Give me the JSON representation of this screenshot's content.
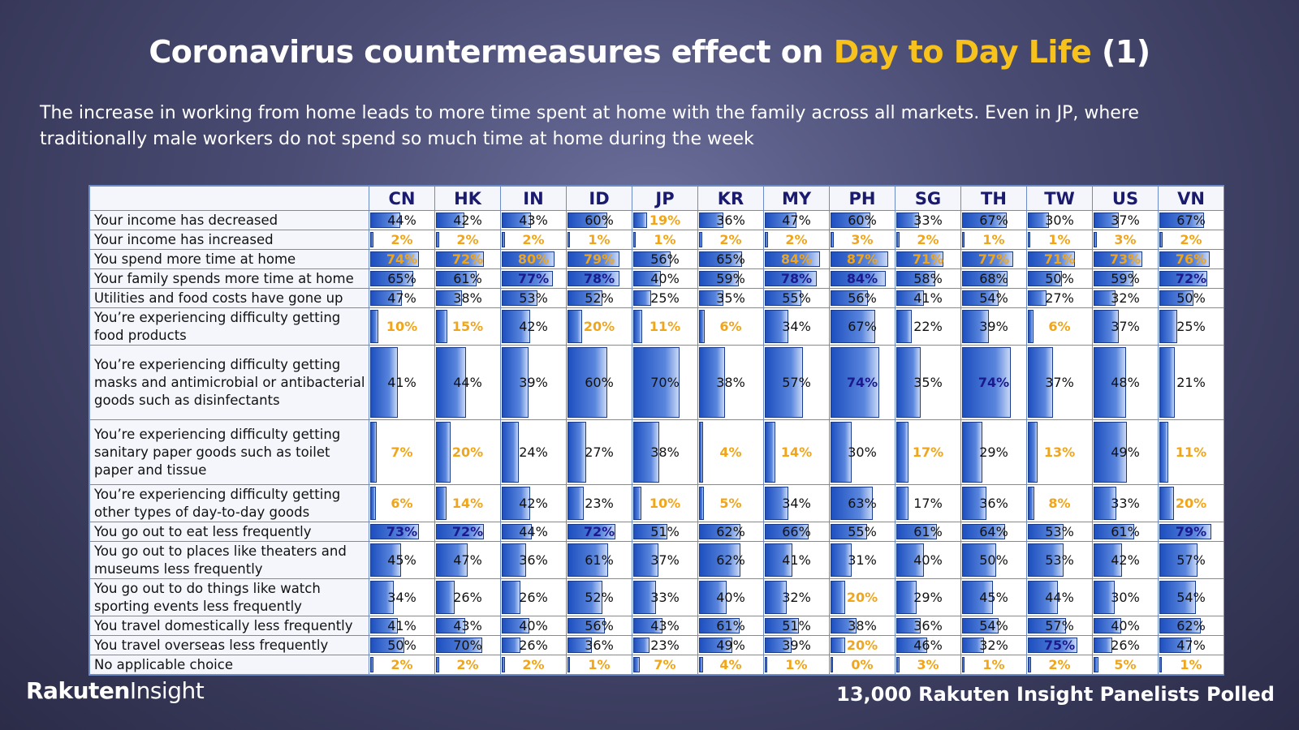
{
  "header": {
    "title_main": "Coronavirus countermeasures effect on ",
    "title_highlight": "Day to Day Life",
    "title_suffix": " (1)",
    "subtitle": "The increase in working from home leads to more time spent at home with the family across all markets. Even in JP, where traditionally male workers do not spend so much time at home during the week"
  },
  "footer": {
    "logo_brand": "Rakuten",
    "logo_sub": "Insight",
    "panel_note": "13,000  Rakuten Insight Panelists Polled"
  },
  "colors": {
    "highlight": "#f7c21c",
    "low_value": "#f0a51b",
    "high_value": "#1a1a8e",
    "bar": "#3a6fd1"
  },
  "chart_data": {
    "type": "table",
    "columns": [
      "CN",
      "HK",
      "IN",
      "ID",
      "JP",
      "KR",
      "MY",
      "PH",
      "SG",
      "TH",
      "TW",
      "US",
      "VN"
    ],
    "rows": [
      {
        "label": "Your income has decreased",
        "values": [
          44,
          42,
          43,
          60,
          19,
          36,
          47,
          60,
          33,
          67,
          30,
          37,
          67
        ]
      },
      {
        "label": "Your income has increased",
        "values": [
          2,
          2,
          2,
          1,
          1,
          2,
          2,
          3,
          2,
          1,
          1,
          3,
          2
        ]
      },
      {
        "label": "You spend more time at home",
        "values": [
          74,
          72,
          80,
          79,
          56,
          65,
          84,
          87,
          71,
          77,
          71,
          73,
          76
        ]
      },
      {
        "label": "Your family spends more time at home",
        "values": [
          65,
          61,
          77,
          78,
          40,
          59,
          78,
          84,
          58,
          68,
          50,
          59,
          72
        ]
      },
      {
        "label": "Utilities and food costs have gone up",
        "values": [
          47,
          38,
          53,
          52,
          25,
          35,
          55,
          56,
          41,
          54,
          27,
          32,
          50
        ]
      },
      {
        "label": "You’re experiencing difficulty getting food products",
        "values": [
          10,
          15,
          42,
          20,
          11,
          6,
          34,
          67,
          22,
          39,
          6,
          37,
          25
        ]
      },
      {
        "label": "You’re experiencing difficulty getting masks and antimicrobial or antibacterial goods such as disinfectants",
        "values": [
          41,
          44,
          39,
          60,
          70,
          38,
          57,
          74,
          35,
          74,
          37,
          48,
          21
        ]
      },
      {
        "label": "You’re experiencing difficulty getting sanitary paper goods such as toilet paper and tissue",
        "values": [
          7,
          20,
          24,
          27,
          38,
          4,
          14,
          30,
          17,
          29,
          13,
          49,
          11
        ]
      },
      {
        "label": "You’re experiencing difficulty getting other types of day-to-day goods",
        "values": [
          6,
          14,
          42,
          23,
          10,
          5,
          34,
          63,
          17,
          36,
          8,
          33,
          20
        ]
      },
      {
        "label": "You go out to eat less frequently",
        "values": [
          73,
          72,
          44,
          72,
          51,
          62,
          66,
          55,
          61,
          64,
          53,
          61,
          79
        ]
      },
      {
        "label": "You go out to places like theaters and museums less frequently",
        "values": [
          45,
          47,
          36,
          61,
          37,
          62,
          41,
          31,
          40,
          50,
          53,
          42,
          57
        ]
      },
      {
        "label": "You go out to do things like watch sporting events less frequently",
        "values": [
          34,
          26,
          26,
          52,
          33,
          40,
          32,
          20,
          29,
          45,
          44,
          30,
          54
        ]
      },
      {
        "label": "You travel domestically less frequently",
        "values": [
          41,
          43,
          40,
          56,
          43,
          61,
          51,
          38,
          36,
          54,
          57,
          40,
          62
        ]
      },
      {
        "label": "You travel overseas less frequently",
        "values": [
          50,
          70,
          26,
          36,
          23,
          49,
          39,
          20,
          46,
          32,
          75,
          26,
          47
        ]
      },
      {
        "label": "No applicable choice",
        "values": [
          2,
          2,
          2,
          1,
          7,
          4,
          1,
          0,
          3,
          1,
          2,
          5,
          1
        ]
      }
    ],
    "low_highlight": [
      [
        false,
        false,
        false,
        false,
        true,
        false,
        false,
        false,
        false,
        false,
        false,
        false,
        false
      ],
      [
        true,
        true,
        true,
        true,
        true,
        true,
        true,
        true,
        true,
        true,
        true,
        true,
        true
      ],
      [
        true,
        true,
        true,
        true,
        false,
        false,
        true,
        true,
        true,
        true,
        true,
        true,
        true
      ],
      [
        false,
        false,
        false,
        false,
        false,
        false,
        false,
        false,
        false,
        false,
        false,
        false,
        false
      ],
      [
        false,
        false,
        false,
        false,
        false,
        false,
        false,
        false,
        false,
        false,
        false,
        false,
        false
      ],
      [
        true,
        true,
        false,
        true,
        true,
        true,
        false,
        false,
        false,
        false,
        true,
        false,
        false
      ],
      [
        false,
        false,
        false,
        false,
        false,
        false,
        false,
        false,
        false,
        false,
        false,
        false,
        false
      ],
      [
        true,
        true,
        false,
        false,
        false,
        true,
        true,
        false,
        true,
        false,
        true,
        false,
        true
      ],
      [
        true,
        true,
        false,
        false,
        true,
        true,
        false,
        false,
        false,
        false,
        true,
        false,
        true
      ],
      [
        false,
        false,
        false,
        false,
        false,
        false,
        false,
        false,
        false,
        false,
        false,
        false,
        false
      ],
      [
        false,
        false,
        false,
        false,
        false,
        false,
        false,
        false,
        false,
        false,
        false,
        false,
        false
      ],
      [
        false,
        false,
        false,
        false,
        false,
        false,
        false,
        true,
        false,
        false,
        false,
        false,
        false
      ],
      [
        false,
        false,
        false,
        false,
        false,
        false,
        false,
        false,
        false,
        false,
        false,
        false,
        false
      ],
      [
        false,
        false,
        false,
        false,
        false,
        false,
        false,
        true,
        false,
        false,
        false,
        false,
        false
      ],
      [
        true,
        true,
        true,
        true,
        true,
        true,
        true,
        true,
        true,
        true,
        true,
        true,
        true
      ]
    ],
    "high_highlight": [
      [
        false,
        false,
        false,
        false,
        false,
        false,
        false,
        false,
        false,
        false,
        false,
        false,
        false
      ],
      [
        false,
        false,
        false,
        false,
        false,
        false,
        false,
        false,
        false,
        false,
        false,
        false,
        false
      ],
      [
        true,
        true,
        true,
        true,
        false,
        false,
        true,
        true,
        true,
        true,
        true,
        true,
        true
      ],
      [
        false,
        false,
        true,
        true,
        false,
        false,
        true,
        true,
        false,
        false,
        false,
        false,
        true
      ],
      [
        false,
        false,
        false,
        false,
        false,
        false,
        false,
        false,
        false,
        false,
        false,
        false,
        false
      ],
      [
        false,
        false,
        false,
        false,
        false,
        false,
        false,
        false,
        false,
        false,
        false,
        false,
        false
      ],
      [
        false,
        false,
        false,
        false,
        false,
        false,
        false,
        true,
        false,
        true,
        false,
        false,
        false
      ],
      [
        false,
        false,
        false,
        false,
        false,
        false,
        false,
        false,
        false,
        false,
        false,
        false,
        false
      ],
      [
        false,
        false,
        false,
        false,
        false,
        false,
        false,
        false,
        false,
        false,
        false,
        false,
        false
      ],
      [
        true,
        true,
        false,
        true,
        false,
        false,
        false,
        false,
        false,
        false,
        false,
        false,
        true
      ],
      [
        false,
        false,
        false,
        false,
        false,
        false,
        false,
        false,
        false,
        false,
        false,
        false,
        false
      ],
      [
        false,
        false,
        false,
        false,
        false,
        false,
        false,
        false,
        false,
        false,
        false,
        false,
        false
      ],
      [
        false,
        false,
        false,
        false,
        false,
        false,
        false,
        false,
        false,
        false,
        false,
        false,
        false
      ],
      [
        false,
        false,
        false,
        false,
        false,
        false,
        false,
        false,
        false,
        false,
        true,
        false,
        false
      ],
      [
        false,
        false,
        false,
        false,
        false,
        false,
        false,
        false,
        false,
        false,
        false,
        false,
        false
      ]
    ]
  }
}
